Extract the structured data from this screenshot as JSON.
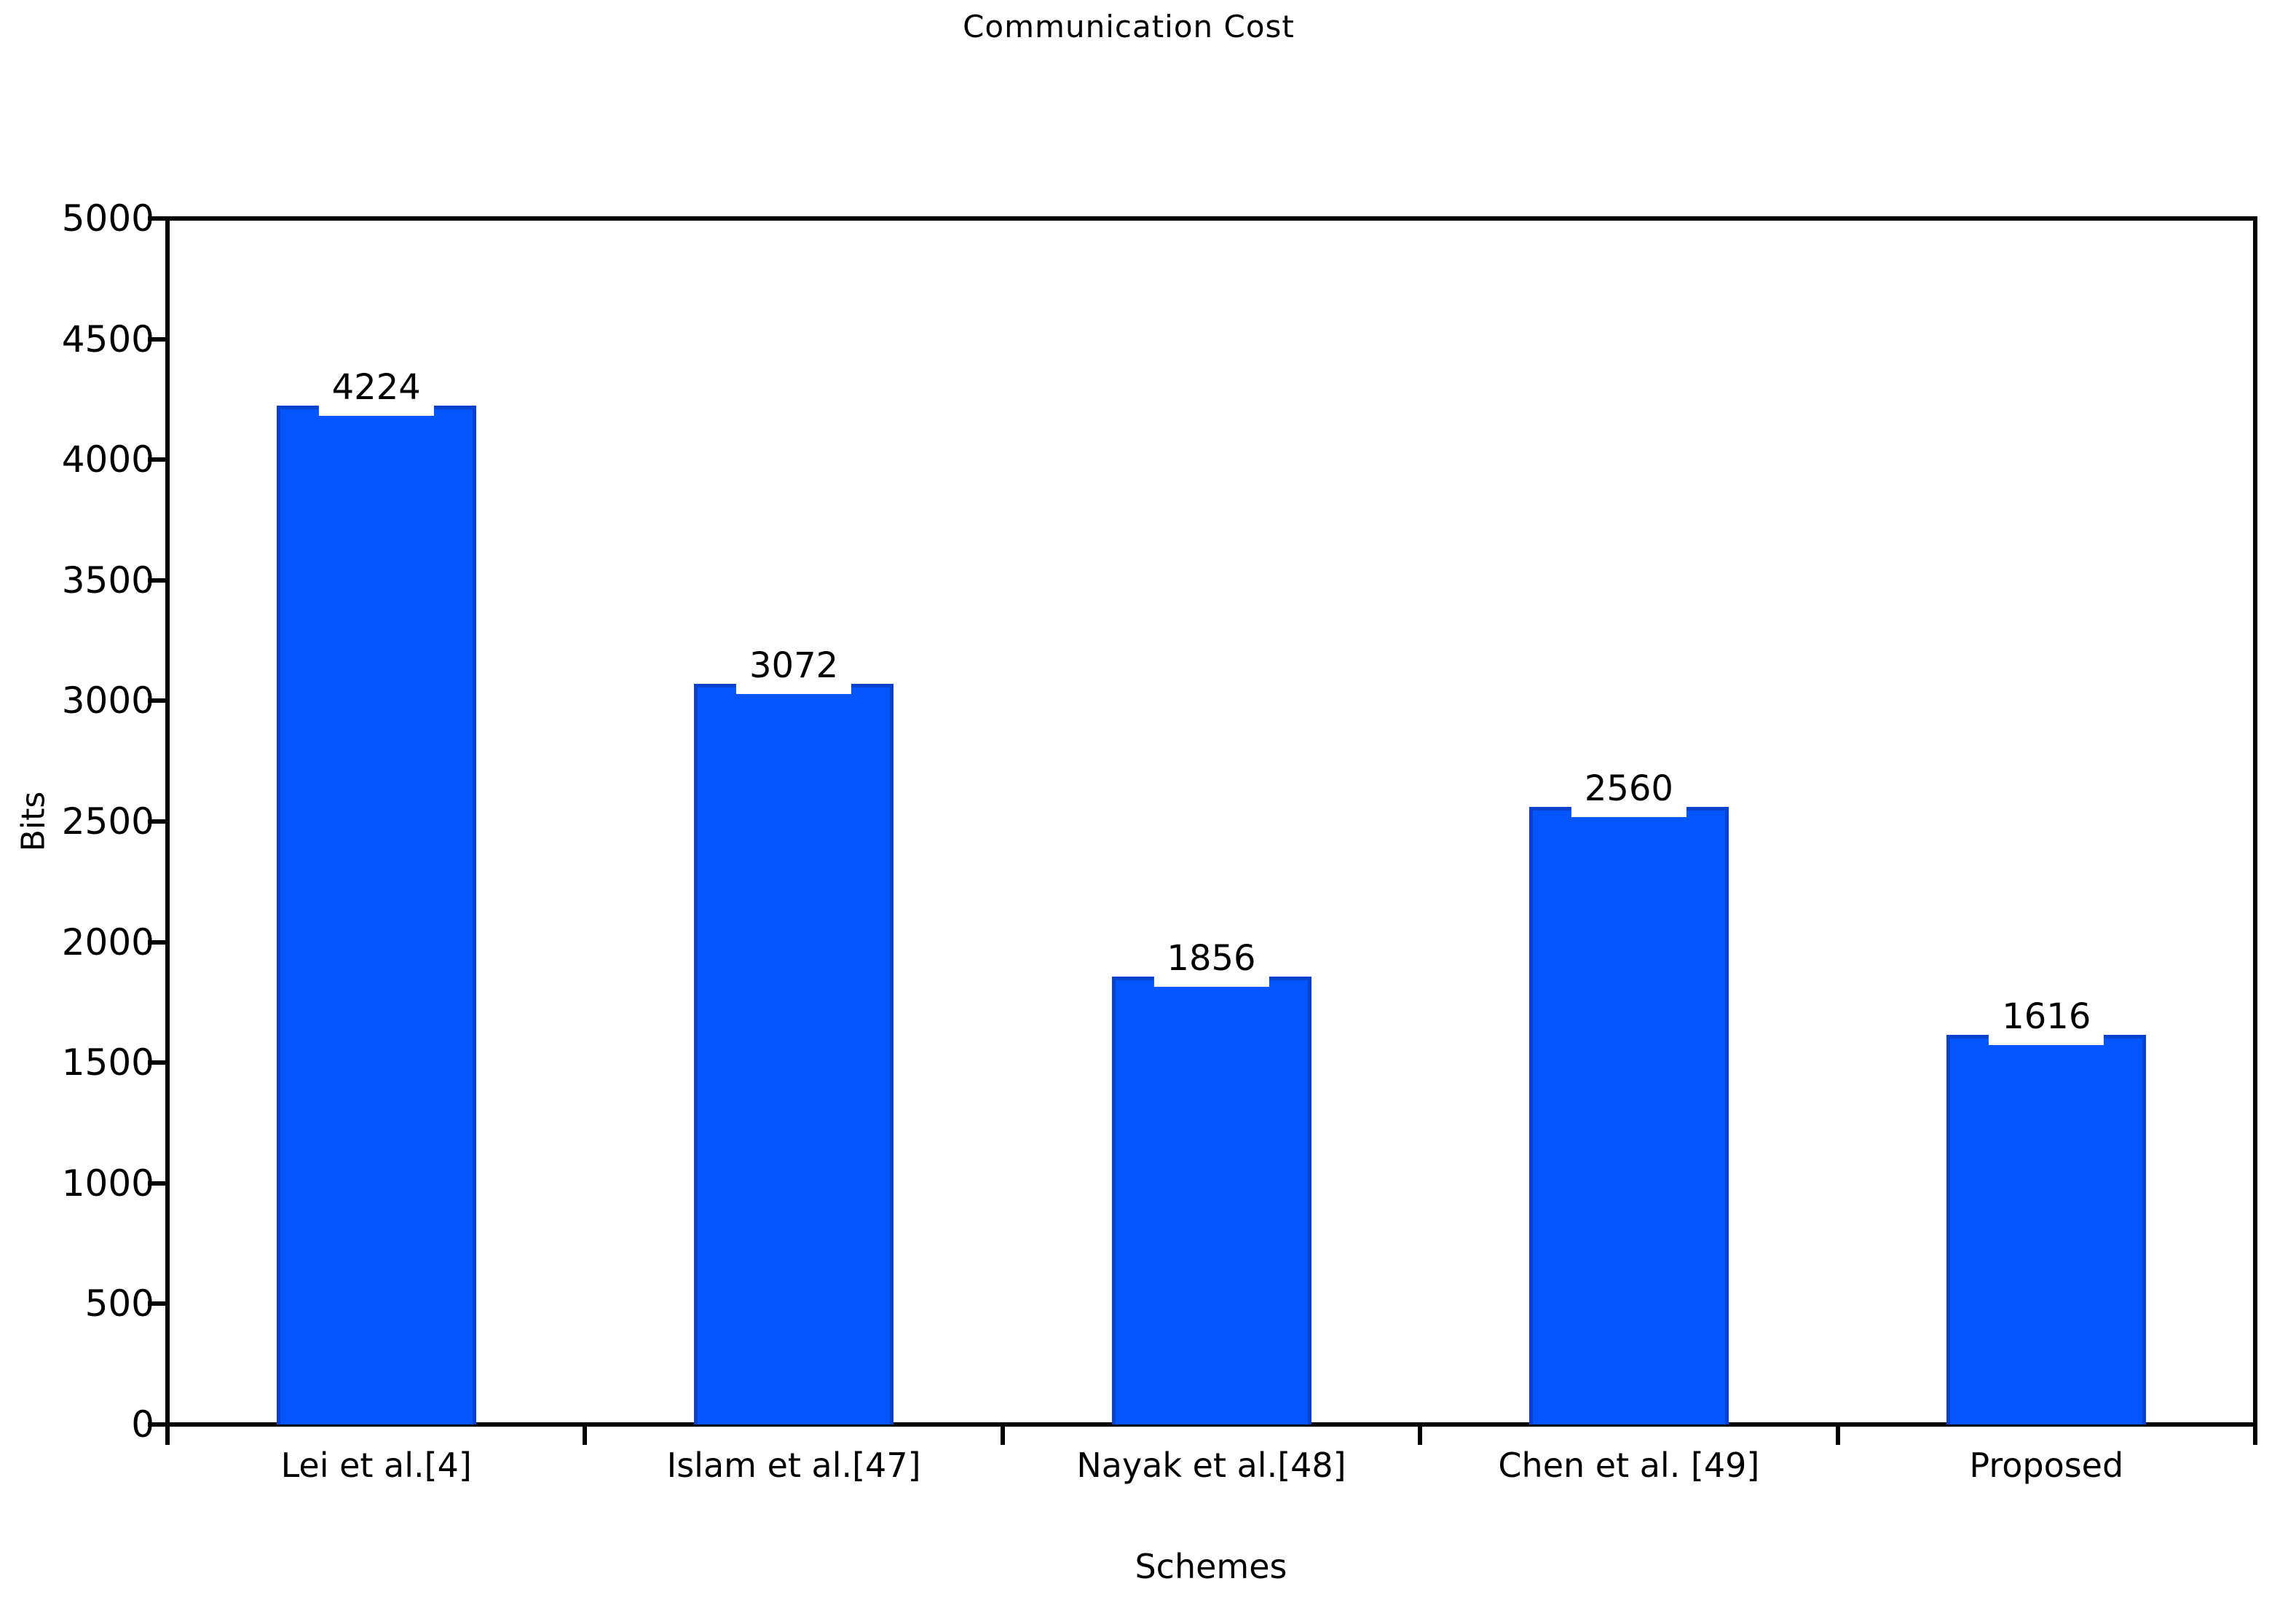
{
  "title": "Communication Cost",
  "chart_data": {
    "type": "bar",
    "title": "Communication Cost",
    "categories": [
      "Lei et al.[4]",
      "Islam et al.[47]",
      "Nayak et al.[48]",
      "Chen et al. [49]",
      "Proposed"
    ],
    "values": [
      4224,
      3072,
      1856,
      2560,
      1616
    ],
    "value_labels": [
      "4224",
      "3072",
      "1856",
      "2560",
      "1616"
    ],
    "xlabel": "Schemes",
    "ylabel": "Bits",
    "ylim": [
      0,
      5000
    ],
    "yticks": [
      0,
      500,
      1000,
      1500,
      2000,
      2500,
      3000,
      3500,
      4000,
      4500,
      5000
    ],
    "grid": "off",
    "legend": "none",
    "bar_fill_color": "#0356FB",
    "bar_border_color": "#0B42CD",
    "axis_color": "#000000",
    "text_color": "#000000",
    "background_color": "#ffffff"
  }
}
